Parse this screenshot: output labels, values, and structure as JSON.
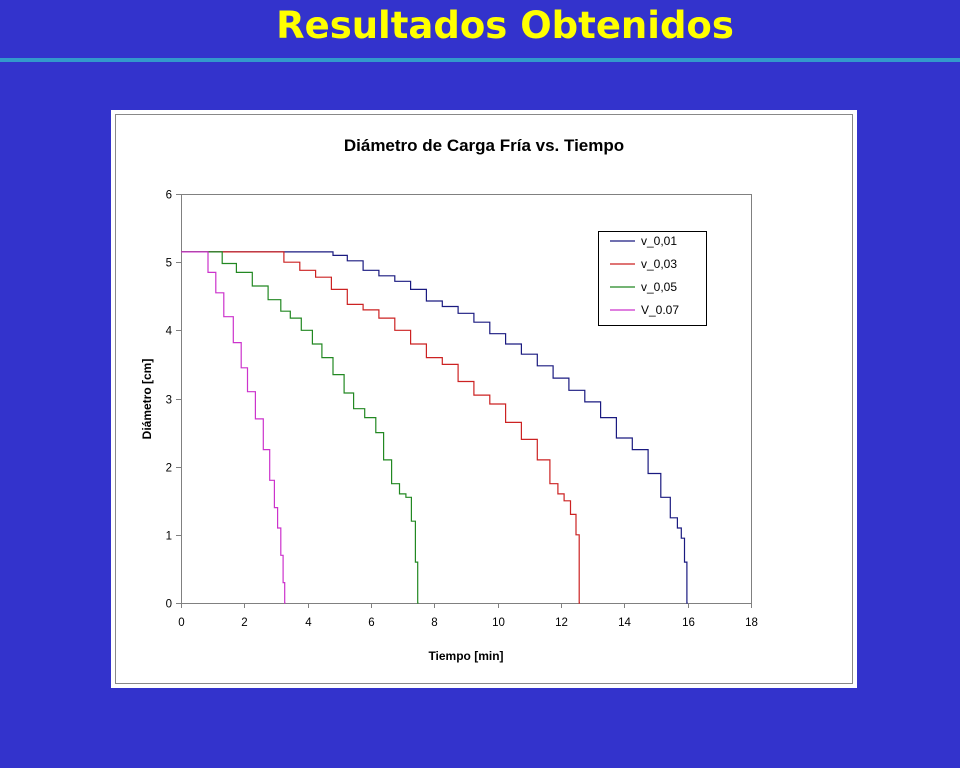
{
  "slide": {
    "title": "Resultados Obtenidos"
  },
  "colors": {
    "background": "#3333cc",
    "title": "#ffff00",
    "rule": "#3399cc"
  },
  "chart_data": {
    "type": "line",
    "title": "Diámetro de Carga Fría vs. Tiempo",
    "xlabel": "Tiempo [min]",
    "ylabel": "Diámetro [cm]",
    "xlim": [
      0,
      18
    ],
    "ylim": [
      0,
      6
    ],
    "xticks": [
      0,
      2,
      4,
      6,
      8,
      10,
      12,
      14,
      16,
      18
    ],
    "yticks": [
      0,
      1,
      2,
      3,
      4,
      5,
      6
    ],
    "grid": false,
    "legend_position": "top-right",
    "series": [
      {
        "name": "v_0,01",
        "color": "#1a1a80",
        "x": [
          0,
          4.6,
          5.0,
          5.5,
          6.0,
          6.5,
          7.0,
          7.5,
          8.0,
          8.5,
          9.0,
          9.5,
          10.0,
          10.5,
          11.0,
          11.5,
          12.0,
          12.5,
          13.0,
          13.5,
          14.0,
          14.5,
          15.0,
          15.3,
          15.6,
          15.75,
          15.85,
          15.95,
          16.0
        ],
        "y": [
          5.15,
          5.15,
          5.1,
          5.02,
          4.88,
          4.8,
          4.72,
          4.6,
          4.43,
          4.35,
          4.25,
          4.12,
          3.95,
          3.8,
          3.65,
          3.48,
          3.3,
          3.12,
          2.95,
          2.72,
          2.42,
          2.25,
          1.9,
          1.55,
          1.25,
          1.1,
          0.95,
          0.6,
          0
        ],
        "label": "v_0,01"
      },
      {
        "name": "v_0,03",
        "color": "#cc2222",
        "x": [
          0,
          3.0,
          3.5,
          4.0,
          4.5,
          5.0,
          5.5,
          6.0,
          6.5,
          7.0,
          7.5,
          8.0,
          8.5,
          9.0,
          9.5,
          10.0,
          10.5,
          11.0,
          11.5,
          11.8,
          12.0,
          12.2,
          12.4,
          12.55,
          12.6
        ],
        "y": [
          5.15,
          5.15,
          5.0,
          4.88,
          4.78,
          4.6,
          4.38,
          4.3,
          4.18,
          4.0,
          3.8,
          3.6,
          3.5,
          3.25,
          3.05,
          2.92,
          2.65,
          2.4,
          2.1,
          1.75,
          1.6,
          1.5,
          1.3,
          1.0,
          0
        ],
        "label": "v_0,03"
      },
      {
        "name": "v_0,05",
        "color": "#228822",
        "x": [
          0,
          1.1,
          1.5,
          2.0,
          2.5,
          3.0,
          3.3,
          3.6,
          4.0,
          4.3,
          4.6,
          5.0,
          5.3,
          5.6,
          6.0,
          6.3,
          6.5,
          6.8,
          7.0,
          7.2,
          7.35,
          7.45,
          7.5
        ],
        "y": [
          5.15,
          5.15,
          4.98,
          4.85,
          4.65,
          4.45,
          4.28,
          4.18,
          4.0,
          3.8,
          3.6,
          3.35,
          3.08,
          2.85,
          2.72,
          2.5,
          2.1,
          1.75,
          1.6,
          1.55,
          1.2,
          0.6,
          0
        ],
        "label": "v_0,05"
      },
      {
        "name": "V_0.07",
        "color": "#cc33cc",
        "x": [
          0,
          0.7,
          1.0,
          1.2,
          1.5,
          1.8,
          2.0,
          2.2,
          2.5,
          2.7,
          2.9,
          3.0,
          3.1,
          3.2,
          3.25,
          3.3
        ],
        "y": [
          5.15,
          5.15,
          4.85,
          4.55,
          4.2,
          3.82,
          3.45,
          3.1,
          2.7,
          2.25,
          1.8,
          1.4,
          1.1,
          0.7,
          0.3,
          0
        ],
        "label": "V_0.07"
      }
    ]
  }
}
